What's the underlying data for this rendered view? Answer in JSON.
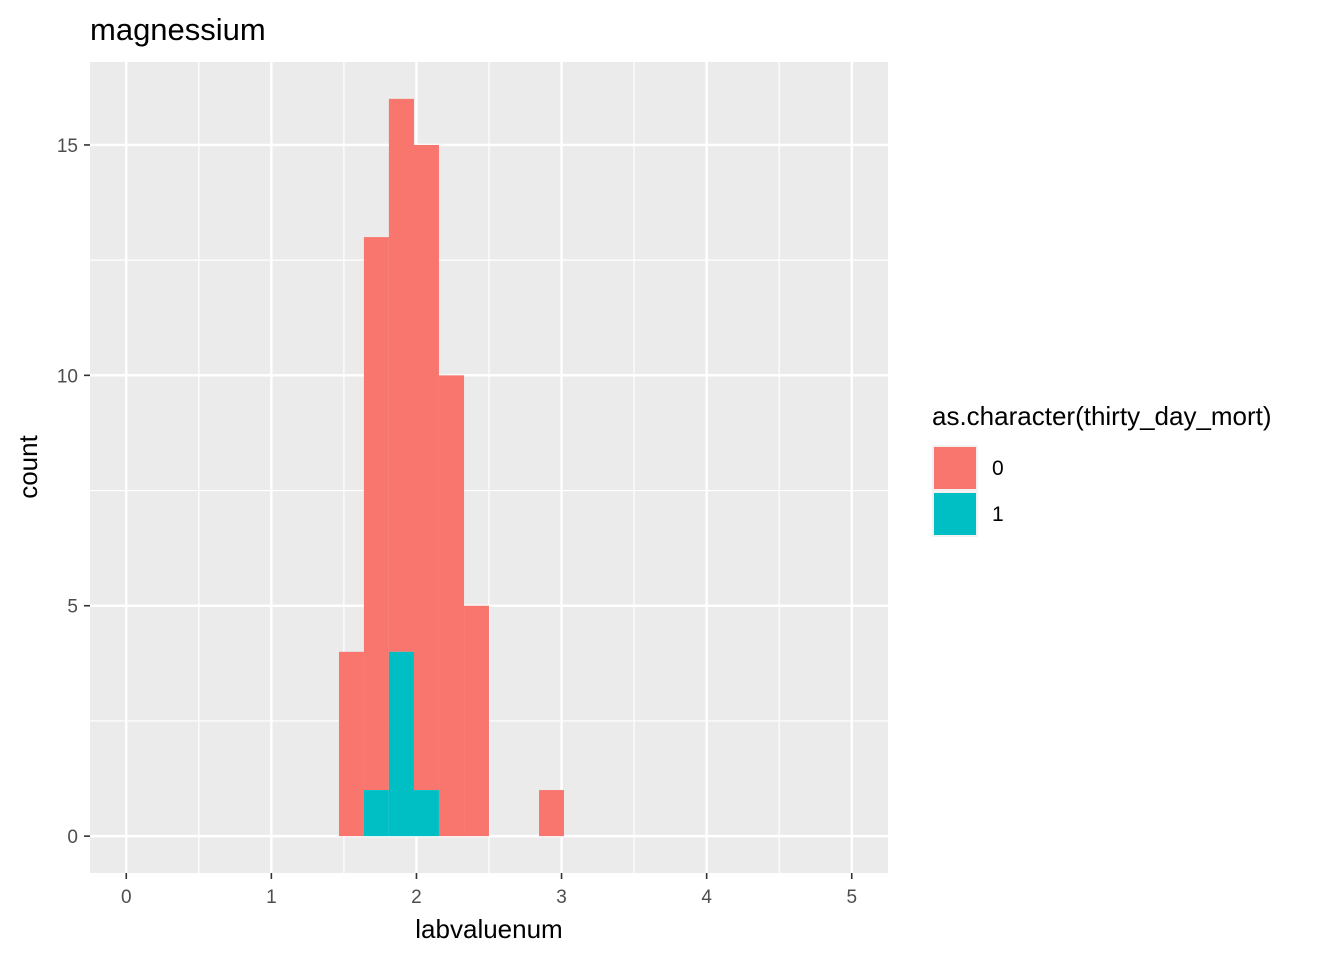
{
  "chart_data": {
    "type": "bar",
    "title": "magnessium",
    "xlabel": "labvaluenum",
    "ylabel": "count",
    "xlim": [
      -0.25,
      5.25
    ],
    "ylim": [
      -0.8,
      16.8
    ],
    "x_ticks": [
      0,
      1,
      2,
      3,
      4,
      5
    ],
    "y_ticks": [
      0,
      5,
      10,
      15
    ],
    "grid": true,
    "legend": {
      "title": "as.character(thirty_day_mort)",
      "position": "right",
      "entries": [
        {
          "label": "0",
          "color": "#F8766D"
        },
        {
          "label": "1",
          "color": "#00BFC4"
        }
      ]
    },
    "bin_width": 0.1724,
    "series": [
      {
        "name": "0",
        "color": "#F8766D",
        "bins": [
          {
            "x0": 1.466,
            "x1": 1.638,
            "value": 4
          },
          {
            "x0": 1.638,
            "x1": 1.81,
            "value": 12
          },
          {
            "x0": 1.81,
            "x1": 1.983,
            "value": 12
          },
          {
            "x0": 1.983,
            "x1": 2.155,
            "value": 14
          },
          {
            "x0": 2.155,
            "x1": 2.328,
            "value": 10
          },
          {
            "x0": 2.328,
            "x1": 2.5,
            "value": 5
          },
          {
            "x0": 2.845,
            "x1": 3.017,
            "value": 1
          }
        ]
      },
      {
        "name": "1",
        "color": "#00BFC4",
        "bins": [
          {
            "x0": 1.638,
            "x1": 1.81,
            "value": 1
          },
          {
            "x0": 1.81,
            "x1": 1.983,
            "value": 4
          },
          {
            "x0": 1.983,
            "x1": 2.155,
            "value": 1
          }
        ]
      }
    ]
  }
}
